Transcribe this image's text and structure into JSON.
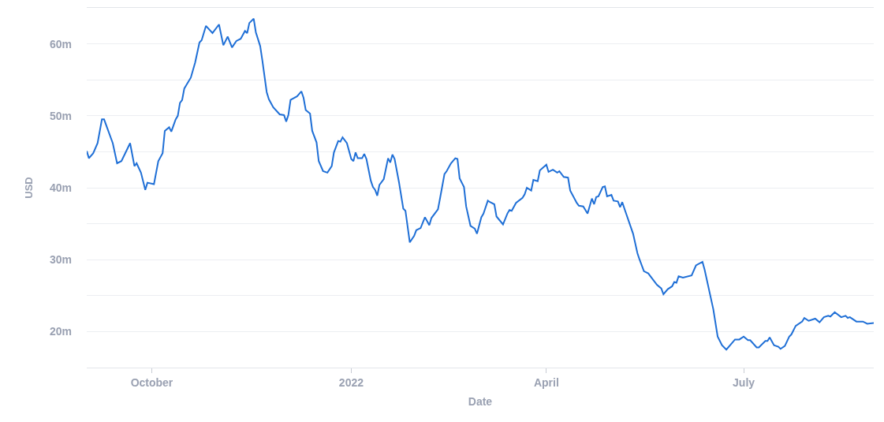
{
  "chart_data": {
    "type": "line",
    "xlabel": "Date",
    "ylabel": "USD",
    "xlim": [
      "2021-09-01",
      "2022-08-30"
    ],
    "xticks": [
      {
        "value": "2021-10-01",
        "label": "October"
      },
      {
        "value": "2022-01-01",
        "label": "2022"
      },
      {
        "value": "2022-04-01",
        "label": "April"
      },
      {
        "value": "2022-07-01",
        "label": "July"
      }
    ],
    "ylim": [
      15,
      65
    ],
    "yticks": [
      {
        "value": 15,
        "label": null
      },
      {
        "value": 20,
        "label": "20m"
      },
      {
        "value": 25,
        "label": null
      },
      {
        "value": 30,
        "label": "30m"
      },
      {
        "value": 35,
        "label": null
      },
      {
        "value": 40,
        "label": "40m"
      },
      {
        "value": 45,
        "label": null
      },
      {
        "value": 50,
        "label": "50m"
      },
      {
        "value": 55,
        "label": null
      },
      {
        "value": 60,
        "label": "60m"
      },
      {
        "value": 65,
        "label": null
      }
    ],
    "grid": "y",
    "marker": "none",
    "line_style": "solid",
    "x": [
      "2021-09-01",
      "2021-09-02",
      "2021-09-04",
      "2021-09-06",
      "2021-09-08",
      "2021-09-09",
      "2021-09-13",
      "2021-09-15",
      "2021-09-17",
      "2021-09-21",
      "2021-09-23",
      "2021-09-24",
      "2021-09-26",
      "2021-09-28",
      "2021-09-29",
      "2021-10-02",
      "2021-10-04",
      "2021-10-06",
      "2021-10-07",
      "2021-10-09",
      "2021-10-10",
      "2021-10-12",
      "2021-10-13",
      "2021-10-14",
      "2021-10-15",
      "2021-10-16",
      "2021-10-19",
      "2021-10-21",
      "2021-10-23",
      "2021-10-24",
      "2021-10-26",
      "2021-10-29",
      "2021-11-01",
      "2021-11-03",
      "2021-11-05",
      "2021-11-07",
      "2021-11-09",
      "2021-11-11",
      "2021-11-13",
      "2021-11-14",
      "2021-11-15",
      "2021-11-17",
      "2021-11-18",
      "2021-11-20",
      "2021-11-21",
      "2021-11-23",
      "2021-11-24",
      "2021-11-26",
      "2021-11-29",
      "2021-12-01",
      "2021-12-02",
      "2021-12-03",
      "2021-12-04",
      "2021-12-07",
      "2021-12-09",
      "2021-12-10",
      "2021-12-11",
      "2021-12-13",
      "2021-12-14",
      "2021-12-16",
      "2021-12-17",
      "2021-12-19",
      "2021-12-21",
      "2021-12-23",
      "2021-12-24",
      "2021-12-26",
      "2021-12-27",
      "2021-12-28",
      "2021-12-30",
      "2022-01-01",
      "2022-01-02",
      "2022-01-03",
      "2022-01-04",
      "2022-01-06",
      "2022-01-07",
      "2022-01-08",
      "2022-01-10",
      "2022-01-11",
      "2022-01-12",
      "2022-01-13",
      "2022-01-14",
      "2022-01-16",
      "2022-01-18",
      "2022-01-19",
      "2022-01-20",
      "2022-01-21",
      "2022-01-23",
      "2022-01-25",
      "2022-01-26",
      "2022-01-28",
      "2022-01-30",
      "2022-01-31",
      "2022-02-02",
      "2022-02-04",
      "2022-02-06",
      "2022-02-07",
      "2022-02-10",
      "2022-02-11",
      "2022-02-13",
      "2022-02-14",
      "2022-02-16",
      "2022-02-18",
      "2022-02-19",
      "2022-02-20",
      "2022-02-22",
      "2022-02-23",
      "2022-02-25",
      "2022-02-27",
      "2022-02-28",
      "2022-03-02",
      "2022-03-03",
      "2022-03-05",
      "2022-03-06",
      "2022-03-08",
      "2022-03-09",
      "2022-03-12",
      "2022-03-14",
      "2022-03-15",
      "2022-03-16",
      "2022-03-18",
      "2022-03-21",
      "2022-03-22",
      "2022-03-23",
      "2022-03-25",
      "2022-03-26",
      "2022-03-28",
      "2022-03-29",
      "2022-04-01",
      "2022-04-02",
      "2022-04-04",
      "2022-04-06",
      "2022-04-07",
      "2022-04-09",
      "2022-04-11",
      "2022-04-12",
      "2022-04-15",
      "2022-04-16",
      "2022-04-18",
      "2022-04-20",
      "2022-04-22",
      "2022-04-23",
      "2022-04-24",
      "2022-04-25",
      "2022-04-27",
      "2022-04-28",
      "2022-04-29",
      "2022-05-01",
      "2022-05-02",
      "2022-05-04",
      "2022-05-05",
      "2022-05-06",
      "2022-05-07",
      "2022-05-11",
      "2022-05-13",
      "2022-05-14",
      "2022-05-16",
      "2022-05-18",
      "2022-05-20",
      "2022-05-22",
      "2022-05-24",
      "2022-05-25",
      "2022-05-27",
      "2022-05-29",
      "2022-05-30",
      "2022-05-31",
      "2022-06-01",
      "2022-06-03",
      "2022-06-07",
      "2022-06-09",
      "2022-06-12",
      "2022-06-13",
      "2022-06-17",
      "2022-06-19",
      "2022-06-21",
      "2022-06-23",
      "2022-06-25",
      "2022-06-27",
      "2022-06-29",
      "2022-07-01",
      "2022-07-03",
      "2022-07-04",
      "2022-07-07",
      "2022-07-08",
      "2022-07-11",
      "2022-07-12",
      "2022-07-13",
      "2022-07-15",
      "2022-07-17",
      "2022-07-18",
      "2022-07-20",
      "2022-07-22",
      "2022-07-23",
      "2022-07-25",
      "2022-07-28",
      "2022-07-29",
      "2022-07-31",
      "2022-08-03",
      "2022-08-05",
      "2022-08-07",
      "2022-08-09",
      "2022-08-10",
      "2022-08-12",
      "2022-08-15",
      "2022-08-17",
      "2022-08-18",
      "2022-08-19",
      "2022-08-22",
      "2022-08-25",
      "2022-08-27",
      "2022-08-30"
    ],
    "series": [
      {
        "color": "#1f6fd6",
        "values": [
          45.1,
          44.1,
          44.8,
          46.2,
          49.5,
          49.5,
          46.2,
          43.4,
          43.7,
          46.2,
          43.0,
          43.4,
          42.1,
          39.7,
          40.7,
          40.5,
          43.7,
          44.8,
          47.9,
          48.4,
          47.8,
          49.5,
          50.0,
          51.8,
          52.2,
          53.8,
          55.3,
          57.4,
          60.2,
          60.5,
          62.5,
          61.5,
          62.7,
          59.8,
          61.0,
          59.5,
          60.4,
          60.7,
          61.8,
          61.5,
          62.9,
          63.5,
          61.6,
          59.7,
          57.7,
          53.3,
          52.3,
          51.2,
          50.2,
          50.1,
          49.2,
          50.1,
          52.2,
          52.7,
          53.4,
          52.5,
          50.8,
          50.3,
          47.9,
          46.3,
          43.7,
          42.3,
          42.1,
          43.0,
          44.9,
          46.5,
          46.4,
          47.0,
          46.2,
          44.0,
          43.7,
          44.9,
          44.1,
          44.1,
          44.7,
          44.0,
          41.0,
          40.1,
          39.7,
          38.9,
          40.4,
          41.2,
          44.1,
          43.5,
          44.6,
          44.0,
          40.8,
          37.1,
          36.8,
          32.4,
          33.3,
          34.1,
          34.4,
          35.9,
          34.8,
          35.8,
          37.0,
          38.6,
          41.9,
          42.3,
          43.4,
          44.1,
          44.0,
          41.3,
          40.1,
          37.4,
          34.7,
          34.3,
          33.6,
          35.9,
          36.4,
          38.2,
          38.0,
          37.7,
          36.0,
          34.9,
          36.4,
          36.9,
          36.8,
          37.9,
          38.6,
          39.1,
          40.0,
          39.6,
          41.1,
          40.9,
          42.4,
          43.2,
          42.2,
          42.5,
          42.1,
          42.3,
          41.5,
          41.4,
          39.6,
          37.9,
          37.5,
          37.4,
          36.4,
          38.5,
          37.7,
          38.7,
          38.8,
          40.1,
          40.2,
          38.8,
          39.0,
          38.2,
          38.1,
          37.3,
          38.0,
          37.1,
          33.6,
          30.9,
          30.0,
          28.4,
          28.1,
          27.3,
          26.5,
          26.0,
          25.2,
          25.9,
          26.3,
          26.9,
          26.8,
          27.7,
          27.5,
          27.8,
          29.2,
          29.7,
          28.6,
          23.1,
          19.3,
          18.1,
          17.5,
          18.2,
          18.9,
          18.9,
          19.3,
          18.8,
          18.8,
          17.8,
          17.8,
          18.7,
          18.7,
          19.2,
          18.1,
          17.9,
          17.6,
          18.0,
          19.3,
          19.6,
          20.8,
          21.4,
          21.9,
          21.5,
          21.8,
          21.3,
          22.0,
          22.2,
          22.1,
          22.7,
          22.0,
          22.2,
          21.9,
          22.0,
          21.4,
          21.4,
          21.1,
          21.2
        ]
      }
    ]
  }
}
